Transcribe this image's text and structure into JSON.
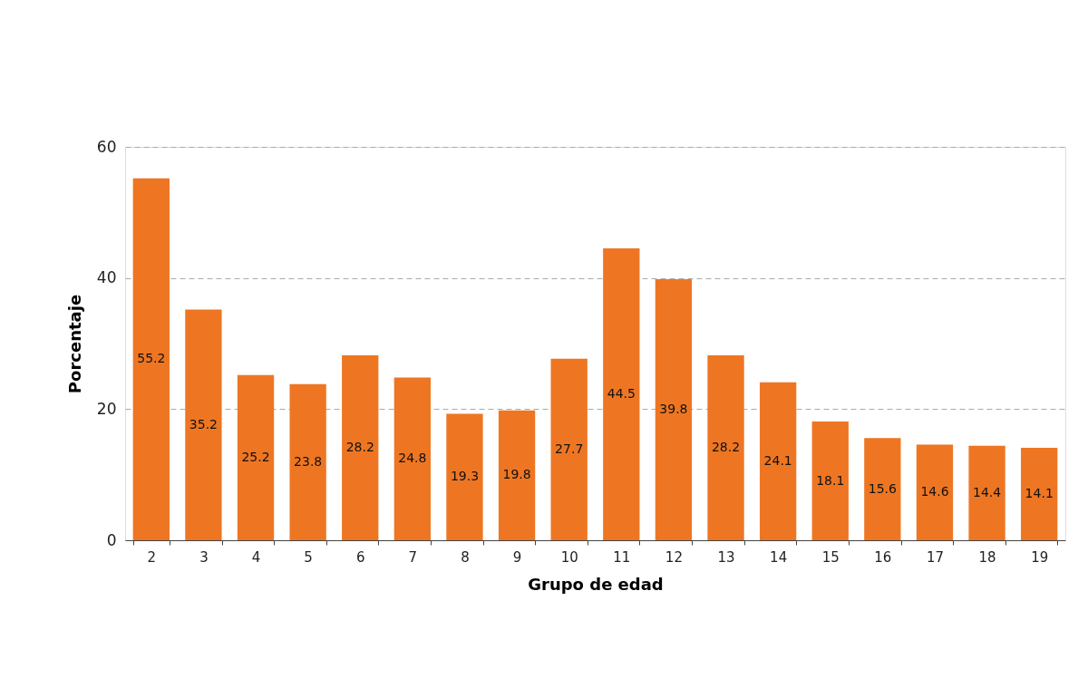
{
  "chart_data": {
    "type": "bar",
    "xlabel": "Grupo de edad",
    "ylabel": "Porcentaje",
    "categories": [
      "2",
      "3",
      "4",
      "5",
      "6",
      "7",
      "8",
      "9",
      "10",
      "11",
      "12",
      "13",
      "14",
      "15",
      "16",
      "17",
      "18",
      "19"
    ],
    "values": [
      55.2,
      35.2,
      25.2,
      23.8,
      28.2,
      24.8,
      19.3,
      19.8,
      27.7,
      44.5,
      39.8,
      28.2,
      24.1,
      18.1,
      15.6,
      14.6,
      14.4,
      14.1
    ],
    "color": "#ee7623",
    "ylim": [
      0,
      60
    ],
    "yticks": [
      0,
      20,
      40,
      60
    ],
    "grid": "y",
    "data_labels": true
  }
}
